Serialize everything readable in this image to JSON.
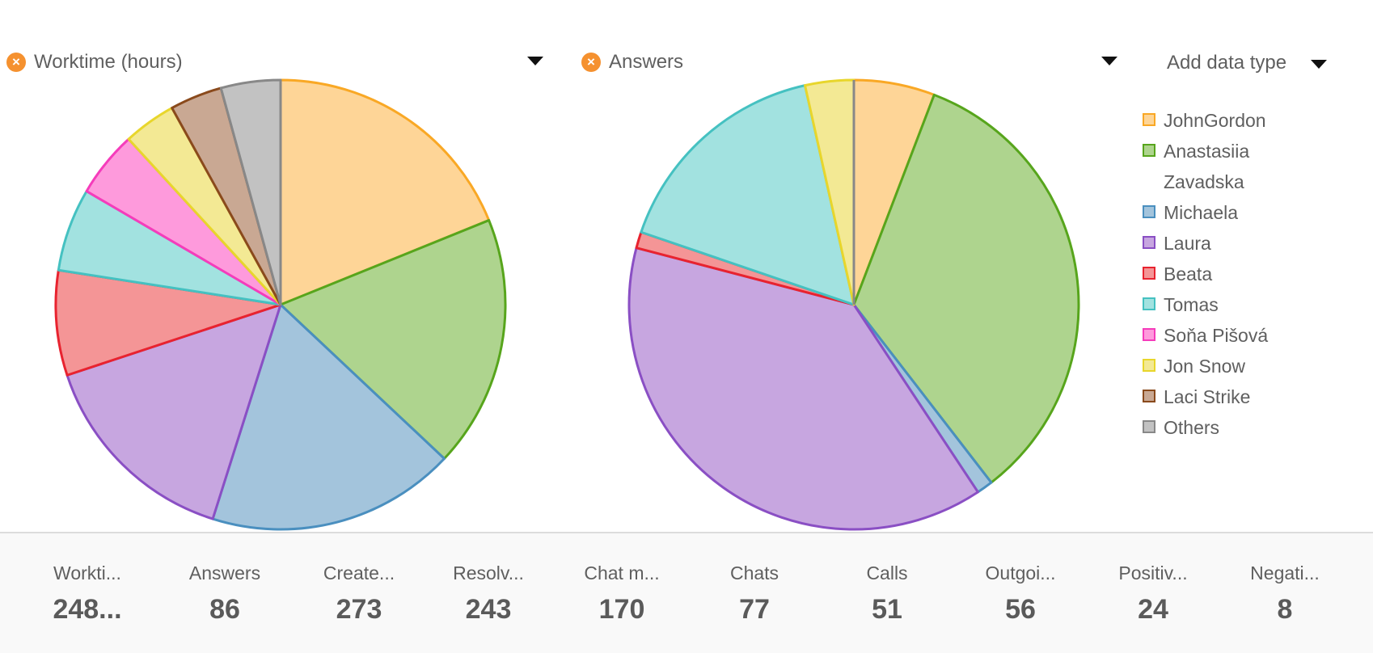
{
  "charts_header": {
    "add_data_type": "Add data type"
  },
  "chart_data": [
    {
      "type": "pie",
      "title": "Worktime (hours)",
      "categories": [
        "JohnGordon",
        "Anastasiia Zavadska",
        "Michaela",
        "Laura",
        "Beata",
        "Tomas",
        "Soňa Pišová",
        "Jon Snow",
        "Laci Strike",
        "Others"
      ],
      "values": [
        46.8,
        45.0,
        44.3,
        37.3,
        18.7,
        14.8,
        11.8,
        9.4,
        9.3,
        10.6
      ]
    },
    {
      "type": "pie",
      "title": "Answers",
      "categories": [
        "JohnGordon",
        "Anastasiia Zavadska",
        "Michaela",
        "Laura",
        "Beata",
        "Tomas",
        "Soňa Pišová",
        "Jon Snow",
        "Laci Strike",
        "Others"
      ],
      "values": [
        5,
        29,
        1,
        33,
        1,
        14,
        0,
        3,
        0,
        0
      ]
    }
  ],
  "legend": [
    {
      "name": "JohnGordon",
      "fill": "#fed597",
      "stroke": "#f9a825"
    },
    {
      "name": "Anastasiia Zavadska",
      "fill": "#aed48e",
      "stroke": "#57a51c"
    },
    {
      "name": "Michaela",
      "fill": "#a3c4dc",
      "stroke": "#4a8fbf"
    },
    {
      "name": "Laura",
      "fill": "#c7a6e0",
      "stroke": "#8a4fc4"
    },
    {
      "name": "Beata",
      "fill": "#f49596",
      "stroke": "#e8232f"
    },
    {
      "name": "Tomas",
      "fill": "#a2e2e0",
      "stroke": "#45c1c1"
    },
    {
      "name": "Soňa Pišová",
      "fill": "#fe9adc",
      "stroke": "#f53cbb"
    },
    {
      "name": "Jon Snow",
      "fill": "#f3e994",
      "stroke": "#e8d62c"
    },
    {
      "name": "Laci Strike",
      "fill": "#c9a893",
      "stroke": "#8a4a1c"
    },
    {
      "name": "Others",
      "fill": "#c2c2c2",
      "stroke": "#888888"
    }
  ],
  "remove_icon": "close-icon",
  "accent_color": "#f5912f",
  "stats": [
    {
      "label": "Workti...",
      "value": "248..."
    },
    {
      "label": "Answers",
      "value": "86"
    },
    {
      "label": "Create...",
      "value": "273"
    },
    {
      "label": "Resolv...",
      "value": "243"
    },
    {
      "label": "Chat m...",
      "value": "170"
    },
    {
      "label": "Chats",
      "value": "77"
    },
    {
      "label": "Calls",
      "value": "51"
    },
    {
      "label": "Outgoi...",
      "value": "56"
    },
    {
      "label": "Positiv...",
      "value": "24"
    },
    {
      "label": "Negati...",
      "value": "8"
    }
  ]
}
